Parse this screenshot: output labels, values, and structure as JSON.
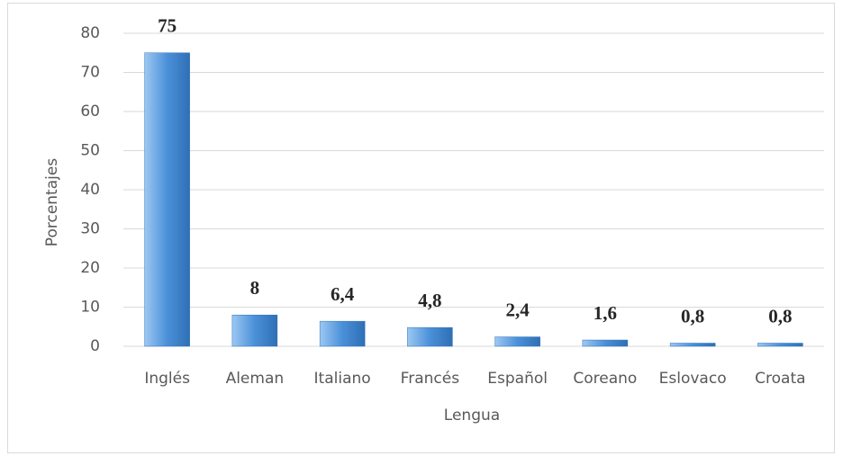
{
  "chart_data": {
    "type": "bar",
    "categories": [
      "Inglés",
      "Aleman",
      "Italiano",
      "Francés",
      "Español",
      "Coreano",
      "Eslovaco",
      "Croata"
    ],
    "values": [
      75,
      8,
      6.4,
      4.8,
      2.4,
      1.6,
      0.8,
      0.8
    ],
    "value_labels": [
      "75",
      "8",
      "6,4",
      "4,8",
      "2,4",
      "1,6",
      "0,8",
      "0,8"
    ],
    "color": "#4a90d9",
    "x_label": "Lengua",
    "y_label": "Porcentajes",
    "ylim": [
      0,
      80
    ],
    "yticks": [
      0,
      10,
      20,
      30,
      40,
      50,
      60,
      70,
      80
    ],
    "grid": true
  }
}
